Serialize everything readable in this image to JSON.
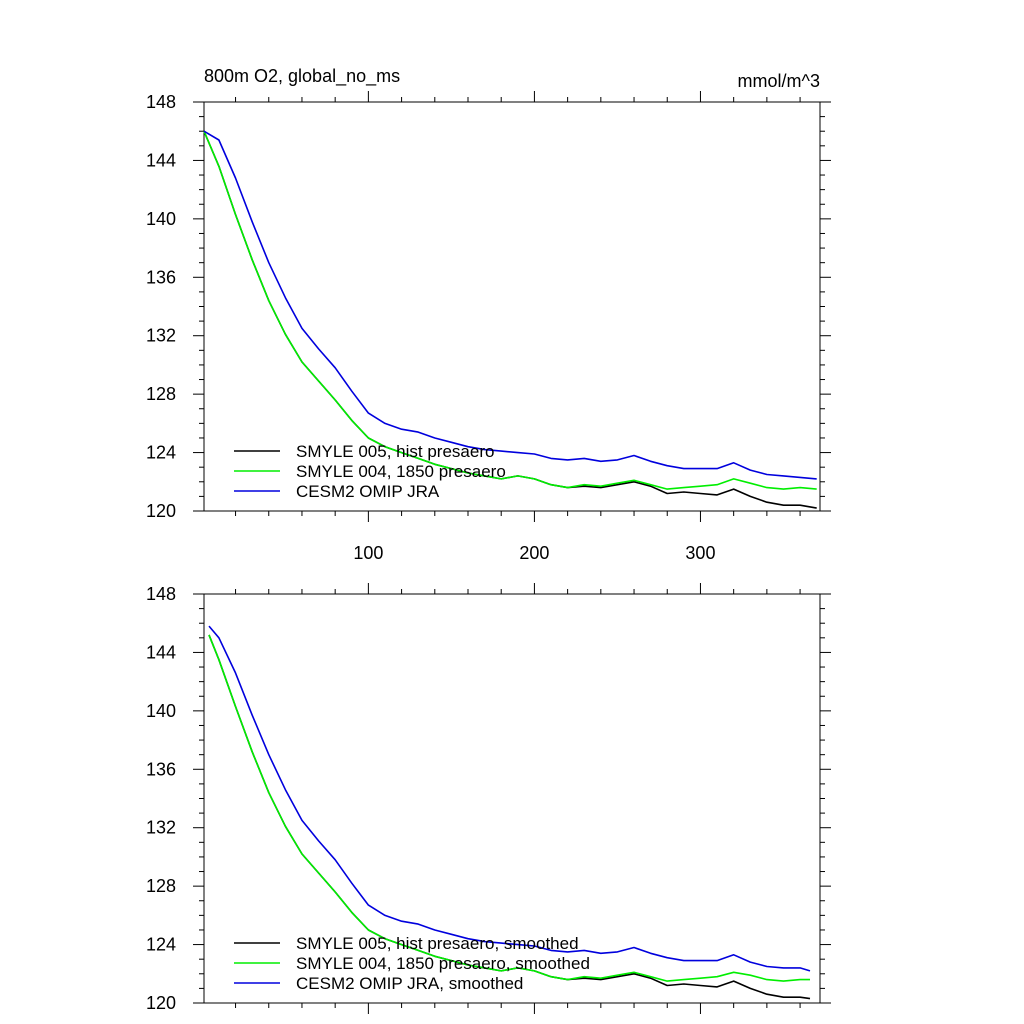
{
  "title_left": "800m O2, global_no_ms",
  "title_right": "mmol/m^3",
  "chart_data": [
    {
      "type": "line",
      "xlim": [
        1,
        372
      ],
      "ylim": [
        120,
        148
      ],
      "x_ticks": [
        100,
        200,
        300
      ],
      "y_ticks": [
        120,
        124,
        128,
        132,
        136,
        140,
        144,
        148
      ],
      "x_tick_labels_visible": true,
      "grid": false,
      "legend_position": "bottom-left",
      "series": [
        {
          "name": "SMYLE 005, hist presaero",
          "color": "#000000",
          "x": [
            1,
            10,
            20,
            30,
            40,
            50,
            60,
            70,
            80,
            90,
            100,
            110,
            120,
            130,
            140,
            150,
            160,
            170,
            180,
            190,
            200,
            210,
            220,
            230,
            240,
            250,
            260,
            270,
            280,
            290,
            300,
            310,
            320,
            330,
            340,
            350,
            360,
            370
          ],
          "y": [
            146.0,
            143.6,
            140.3,
            137.2,
            134.4,
            132.1,
            130.2,
            128.9,
            127.6,
            126.2,
            125.0,
            124.4,
            124.0,
            123.6,
            123.2,
            122.9,
            122.6,
            122.4,
            122.2,
            122.4,
            122.2,
            121.8,
            121.6,
            121.7,
            121.6,
            121.8,
            122.0,
            121.7,
            121.2,
            121.3,
            121.2,
            121.1,
            121.5,
            121.0,
            120.6,
            120.4,
            120.4,
            120.2
          ]
        },
        {
          "name": "SMYLE 004, 1850 presaero",
          "color": "#00ee00",
          "x": [
            1,
            10,
            20,
            30,
            40,
            50,
            60,
            70,
            80,
            90,
            100,
            110,
            120,
            130,
            140,
            150,
            160,
            170,
            180,
            190,
            200,
            210,
            220,
            230,
            240,
            250,
            260,
            270,
            280,
            290,
            300,
            310,
            320,
            330,
            340,
            350,
            360,
            370
          ],
          "y": [
            146.0,
            143.6,
            140.3,
            137.2,
            134.4,
            132.1,
            130.2,
            128.9,
            127.6,
            126.2,
            125.0,
            124.4,
            124.0,
            123.6,
            123.2,
            122.9,
            122.6,
            122.4,
            122.2,
            122.4,
            122.2,
            121.8,
            121.6,
            121.8,
            121.7,
            121.9,
            122.1,
            121.8,
            121.5,
            121.6,
            121.7,
            121.8,
            122.2,
            121.9,
            121.6,
            121.5,
            121.6,
            121.5
          ]
        },
        {
          "name": "CESM2 OMIP JRA",
          "color": "#0000dd",
          "x": [
            1,
            10,
            20,
            30,
            40,
            50,
            60,
            70,
            80,
            90,
            100,
            110,
            120,
            130,
            140,
            150,
            160,
            170,
            180,
            190,
            200,
            210,
            220,
            230,
            240,
            250,
            260,
            270,
            280,
            290,
            300,
            310,
            320,
            330,
            340,
            350,
            360,
            370
          ],
          "y": [
            146.0,
            145.4,
            142.8,
            139.8,
            137.0,
            134.6,
            132.5,
            131.1,
            129.8,
            128.2,
            126.7,
            126.0,
            125.6,
            125.4,
            125.0,
            124.7,
            124.4,
            124.2,
            124.1,
            124.0,
            123.9,
            123.6,
            123.5,
            123.6,
            123.4,
            123.5,
            123.8,
            123.4,
            123.1,
            122.9,
            122.9,
            122.9,
            123.3,
            122.8,
            122.5,
            122.4,
            122.3,
            122.2
          ]
        }
      ]
    },
    {
      "type": "line",
      "xlim": [
        1,
        372
      ],
      "ylim": [
        120,
        148
      ],
      "x_ticks": [
        100,
        200,
        300
      ],
      "y_ticks": [
        120,
        124,
        128,
        132,
        136,
        140,
        144,
        148
      ],
      "x_tick_labels_visible": false,
      "grid": false,
      "legend_position": "bottom-left",
      "series": [
        {
          "name": "SMYLE 005, hist presaero, smoothed",
          "color": "#000000",
          "x": [
            4,
            10,
            20,
            30,
            40,
            50,
            60,
            70,
            80,
            90,
            100,
            110,
            120,
            130,
            140,
            150,
            160,
            170,
            180,
            190,
            200,
            210,
            220,
            230,
            240,
            250,
            260,
            270,
            280,
            290,
            300,
            310,
            320,
            330,
            340,
            350,
            360,
            366
          ],
          "y": [
            145.2,
            143.5,
            140.3,
            137.2,
            134.4,
            132.1,
            130.2,
            128.9,
            127.6,
            126.2,
            125.0,
            124.4,
            124.0,
            123.6,
            123.2,
            122.9,
            122.6,
            122.4,
            122.2,
            122.4,
            122.2,
            121.8,
            121.6,
            121.7,
            121.6,
            121.8,
            122.0,
            121.7,
            121.2,
            121.3,
            121.2,
            121.1,
            121.5,
            121.0,
            120.6,
            120.4,
            120.4,
            120.3
          ]
        },
        {
          "name": "SMYLE 004, 1850 presaero, smoothed",
          "color": "#00ee00",
          "x": [
            4,
            10,
            20,
            30,
            40,
            50,
            60,
            70,
            80,
            90,
            100,
            110,
            120,
            130,
            140,
            150,
            160,
            170,
            180,
            190,
            200,
            210,
            220,
            230,
            240,
            250,
            260,
            270,
            280,
            290,
            300,
            310,
            320,
            330,
            340,
            350,
            360,
            366
          ],
          "y": [
            145.2,
            143.5,
            140.3,
            137.2,
            134.4,
            132.1,
            130.2,
            128.9,
            127.6,
            126.2,
            125.0,
            124.4,
            124.0,
            123.6,
            123.2,
            122.9,
            122.6,
            122.4,
            122.2,
            122.4,
            122.2,
            121.8,
            121.6,
            121.8,
            121.7,
            121.9,
            122.1,
            121.8,
            121.5,
            121.6,
            121.7,
            121.8,
            122.1,
            121.9,
            121.6,
            121.5,
            121.6,
            121.6
          ]
        },
        {
          "name": "CESM2 OMIP JRA, smoothed",
          "color": "#0000dd",
          "x": [
            4,
            10,
            20,
            30,
            40,
            50,
            60,
            70,
            80,
            90,
            100,
            110,
            120,
            130,
            140,
            150,
            160,
            170,
            180,
            190,
            200,
            210,
            220,
            230,
            240,
            250,
            260,
            270,
            280,
            290,
            300,
            310,
            320,
            330,
            340,
            350,
            360,
            366
          ],
          "y": [
            145.8,
            145.0,
            142.6,
            139.7,
            137.0,
            134.6,
            132.5,
            131.1,
            129.8,
            128.2,
            126.7,
            126.0,
            125.6,
            125.4,
            125.0,
            124.7,
            124.4,
            124.2,
            124.1,
            124.0,
            123.9,
            123.6,
            123.5,
            123.6,
            123.4,
            123.5,
            123.8,
            123.4,
            123.1,
            122.9,
            122.9,
            122.9,
            123.3,
            122.8,
            122.5,
            122.4,
            122.4,
            122.2
          ]
        }
      ]
    }
  ]
}
